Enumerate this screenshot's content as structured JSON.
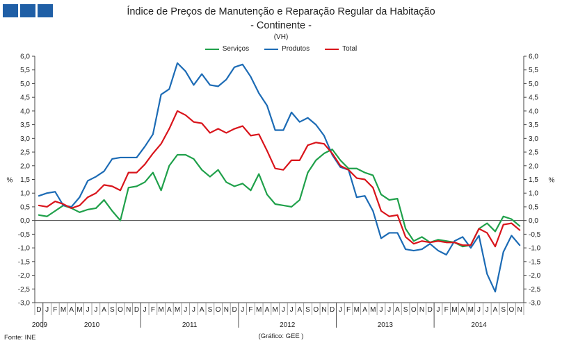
{
  "header": {
    "title": "Índice de Preços de Manutenção e Reparação Regular da Habitação",
    "subtitle": "- Continente -",
    "unit": "(VH)"
  },
  "footer": {
    "source": "Fonte: INE",
    "credit": "(Gráfico: GEE )"
  },
  "colors": {
    "servicos": "#1fa04a",
    "produtos": "#1c6bb5",
    "total": "#d9141b",
    "logo": "#1f5fa6"
  },
  "chart_data": {
    "type": "line",
    "xlabel": "",
    "ylabel_left": "%",
    "ylabel_right": "%",
    "ylim": [
      -3.0,
      6.0
    ],
    "yticks": [
      "6,0",
      "5,5",
      "5,0",
      "4,5",
      "4,0",
      "3,5",
      "3,0",
      "2,5",
      "2,0",
      "1,5",
      "1,0",
      "0,5",
      "0,0",
      "-0,5",
      "-1,0",
      "-1,5",
      "-2,0",
      "-2,5",
      "-3,0"
    ],
    "grid": false,
    "legend": "top-center",
    "months": [
      "D",
      "J",
      "F",
      "M",
      "A",
      "M",
      "J",
      "J",
      "A",
      "S",
      "O",
      "N",
      "D",
      "J",
      "F",
      "M",
      "A",
      "M",
      "J",
      "J",
      "A",
      "S",
      "O",
      "N",
      "D",
      "J",
      "F",
      "M",
      "A",
      "M",
      "J",
      "J",
      "A",
      "S",
      "O",
      "N",
      "D",
      "J",
      "F",
      "M",
      "A",
      "M",
      "J",
      "J",
      "A",
      "S",
      "O",
      "N",
      "D",
      "J",
      "F",
      "M",
      "A",
      "M",
      "J",
      "J",
      "A",
      "S",
      "O",
      "N"
    ],
    "years": [
      "2009",
      "2010",
      "2011",
      "2012",
      "2013",
      "2014"
    ],
    "series": [
      {
        "name": "Serviços",
        "values": [
          0.2,
          0.15,
          0.35,
          0.55,
          0.45,
          0.3,
          0.4,
          0.45,
          0.75,
          0.35,
          0.0,
          1.2,
          1.25,
          1.4,
          1.75,
          1.1,
          2.0,
          2.4,
          2.4,
          2.25,
          1.85,
          1.6,
          1.85,
          1.4,
          1.25,
          1.35,
          1.1,
          1.7,
          0.95,
          0.6,
          0.55,
          0.5,
          0.75,
          1.75,
          2.2,
          2.45,
          2.6,
          2.2,
          1.9,
          1.9,
          1.75,
          1.65,
          0.95,
          0.75,
          0.8,
          -0.3,
          -0.75,
          -0.6,
          -0.8,
          -0.7,
          -0.75,
          -0.8,
          -0.95,
          -0.9,
          -0.3,
          -0.1,
          -0.4,
          0.15,
          0.05,
          -0.2
        ]
      },
      {
        "name": "Produtos",
        "values": [
          0.9,
          1.0,
          1.05,
          0.55,
          0.5,
          0.85,
          1.45,
          1.6,
          1.8,
          2.25,
          2.3,
          2.3,
          2.3,
          2.7,
          3.15,
          4.6,
          4.8,
          5.75,
          5.45,
          4.95,
          5.35,
          4.95,
          4.9,
          5.15,
          5.6,
          5.7,
          5.25,
          4.65,
          4.2,
          3.3,
          3.3,
          3.95,
          3.6,
          3.75,
          3.5,
          3.1,
          2.4,
          1.95,
          1.85,
          0.85,
          0.9,
          0.35,
          -0.65,
          -0.45,
          -0.45,
          -1.05,
          -1.1,
          -1.05,
          -0.85,
          -1.1,
          -1.25,
          -0.75,
          -0.6,
          -1.0,
          -0.55,
          -1.95,
          -2.6,
          -1.15,
          -0.55,
          -0.9
        ]
      },
      {
        "name": "Total",
        "values": [
          0.55,
          0.5,
          0.7,
          0.6,
          0.45,
          0.55,
          0.85,
          1.0,
          1.3,
          1.25,
          1.1,
          1.75,
          1.75,
          2.05,
          2.45,
          2.8,
          3.35,
          4.0,
          3.85,
          3.6,
          3.55,
          3.2,
          3.35,
          3.2,
          3.35,
          3.45,
          3.1,
          3.15,
          2.55,
          1.9,
          1.85,
          2.2,
          2.2,
          2.75,
          2.85,
          2.8,
          2.45,
          2.0,
          1.85,
          1.55,
          1.5,
          1.2,
          0.35,
          0.15,
          0.2,
          -0.6,
          -0.85,
          -0.75,
          -0.8,
          -0.75,
          -0.8,
          -0.8,
          -0.9,
          -0.9,
          -0.3,
          -0.45,
          -0.95,
          -0.15,
          -0.1,
          -0.35
        ]
      }
    ]
  }
}
